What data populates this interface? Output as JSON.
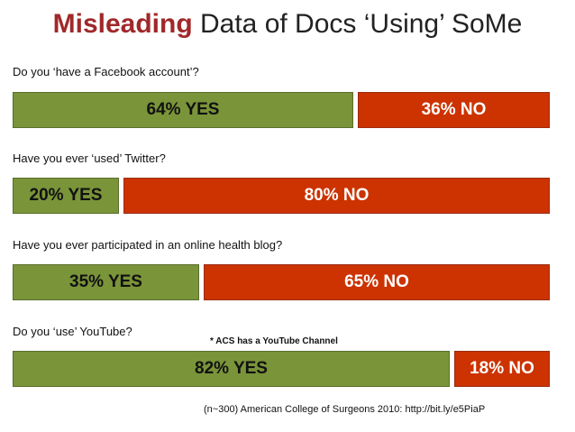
{
  "title_accent": "Misleading",
  "title_rest": " Data of Docs ‘Using’ SoMe",
  "colors": {
    "yes": "#7a9439",
    "no": "#cc3300",
    "title_accent": "#a0282a"
  },
  "chart_data": {
    "type": "bar",
    "orientation": "horizontal-stacked-100",
    "series": [
      {
        "name": "YES",
        "color": "#7a9439"
      },
      {
        "name": "NO",
        "color": "#cc3300"
      }
    ],
    "rows": [
      {
        "question": "Do you ‘have a Facebook account’?",
        "yes": 64,
        "no": 36,
        "yes_label": "64% YES",
        "no_label": "36% NO"
      },
      {
        "question": "Have you ever ‘used’ Twitter?",
        "yes": 20,
        "no": 80,
        "yes_label": "20% YES",
        "no_label": "80% NO"
      },
      {
        "question": "Have you ever participated in an online health blog?",
        "yes": 35,
        "no": 65,
        "yes_label": "35% YES",
        "no_label": "65% NO"
      },
      {
        "question": "Do you ‘use’ YouTube?",
        "yes": 82,
        "no": 18,
        "yes_label": "82% YES",
        "no_label": "18% NO"
      }
    ],
    "annotation": "* ACS has a YouTube Channel",
    "source": "(n~300) American College of Surgeons 2010: http://bit.ly/e5PiaP"
  }
}
